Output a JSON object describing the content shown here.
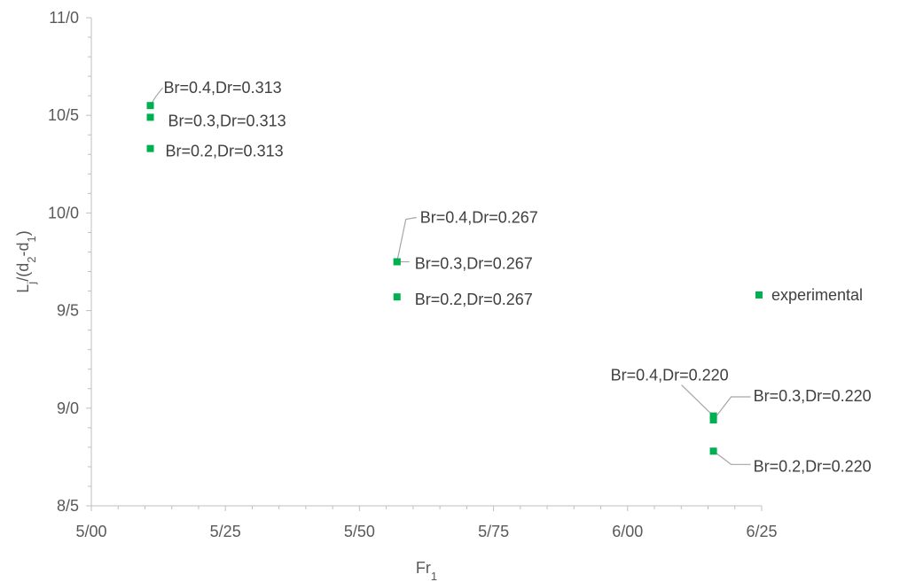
{
  "chart_data": {
    "type": "scatter",
    "x_axis": {
      "label_base": "Fr",
      "label_sub": "1",
      "range": [
        5.0,
        6.25
      ],
      "ticks": [
        {
          "value": 5.0,
          "label": "5/00"
        },
        {
          "value": 5.25,
          "label": "5/25"
        },
        {
          "value": 5.5,
          "label": "5/50"
        },
        {
          "value": 5.75,
          "label": "5/75"
        },
        {
          "value": 6.0,
          "label": "6/00"
        },
        {
          "value": 6.25,
          "label": "6/25"
        }
      ]
    },
    "y_axis": {
      "label_parts": [
        {
          "t": "L",
          "sub": false
        },
        {
          "t": "j",
          "sub": true
        },
        {
          "t": "/(d",
          "sub": false
        },
        {
          "t": "2",
          "sub": true
        },
        {
          "t": "-d",
          "sub": false
        },
        {
          "t": "1",
          "sub": true
        },
        {
          "t": ")",
          "sub": false
        }
      ],
      "range": [
        8.5,
        11.0
      ],
      "ticks": [
        {
          "value": 8.5,
          "label": "8/5"
        },
        {
          "value": 9.0,
          "label": "9/0"
        },
        {
          "value": 9.5,
          "label": "9/5"
        },
        {
          "value": 10.0,
          "label": "10/0"
        },
        {
          "value": 10.5,
          "label": "10/5"
        },
        {
          "value": 11.0,
          "label": "11/0"
        }
      ]
    },
    "grid": false,
    "marker_color": "#00B050",
    "points": [
      {
        "x": 5.11,
        "y": 10.55,
        "label": "Br=0.4,Dr=0.313"
      },
      {
        "x": 5.11,
        "y": 10.49,
        "label": "Br=0.3,Dr=0.313"
      },
      {
        "x": 5.11,
        "y": 10.33,
        "label": "Br=0.2,Dr=0.313"
      },
      {
        "x": 5.57,
        "y": 9.75,
        "label": "Br=0.4,Dr=0.267"
      },
      {
        "x": 5.57,
        "y": 9.75,
        "label": "Br=0.3,Dr=0.267"
      },
      {
        "x": 5.57,
        "y": 9.57,
        "label": "Br=0.2,Dr=0.267"
      },
      {
        "x": 6.16,
        "y": 8.96,
        "label": "Br=0.4,Dr=0.220"
      },
      {
        "x": 6.16,
        "y": 8.94,
        "label": "Br=0.3,Dr=0.220"
      },
      {
        "x": 6.16,
        "y": 8.78,
        "label": "Br=0.2,Dr=0.220"
      },
      {
        "x": 6.245,
        "y": 9.58,
        "label": "experimental"
      }
    ]
  }
}
